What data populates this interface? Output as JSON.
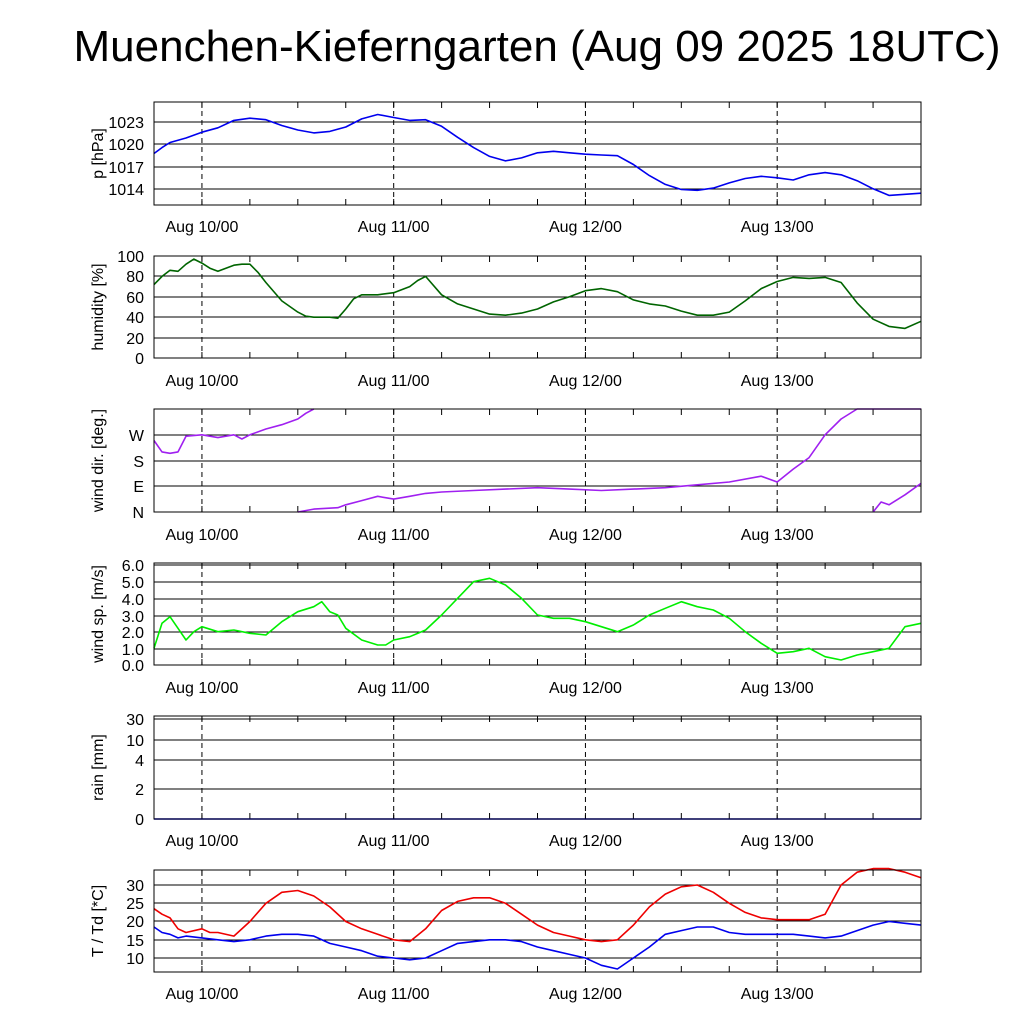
{
  "title": "Muenchen-Kieferngarten (Aug 09 2025 18UTC)",
  "x_ticks": [
    "Aug 10/00",
    "Aug 11/00",
    "Aug 12/00",
    "Aug 13/00"
  ],
  "colors": {
    "pressure": "#0000ee",
    "humidity": "#006400",
    "wind_dir": "#a020f0",
    "wind_sp": "#00ee00",
    "temperature": "#ee0000",
    "dewpoint": "#0000ee",
    "grid": "#000000"
  },
  "chart_data": [
    {
      "type": "line",
      "ylabel": "p [hPa]",
      "yticks": [
        "1023",
        "1020",
        "1017",
        "1014"
      ],
      "ylim": [
        1012,
        1026
      ],
      "series": [
        {
          "color_key": "pressure",
          "x": [
            -6,
            -5,
            -4,
            -2,
            0,
            2,
            4,
            6,
            8,
            10,
            12,
            14,
            16,
            18,
            20,
            22,
            24,
            26,
            28,
            30,
            32,
            34,
            36,
            38,
            40,
            42,
            44,
            46,
            48,
            50,
            52,
            54,
            56,
            58,
            60,
            62,
            64,
            66,
            68,
            70,
            72,
            74,
            76,
            78,
            80,
            82,
            84,
            86,
            90
          ],
          "y": [
            1019.0,
            1019.8,
            1020.5,
            1021.1,
            1021.9,
            1022.5,
            1023.5,
            1023.8,
            1023.6,
            1022.8,
            1022.2,
            1021.8,
            1022.0,
            1022.6,
            1023.7,
            1024.3,
            1023.9,
            1023.5,
            1023.6,
            1022.7,
            1021.2,
            1019.8,
            1018.6,
            1018.0,
            1018.4,
            1019.1,
            1019.3,
            1019.1,
            1018.9,
            1018.8,
            1018.7,
            1017.5,
            1016.0,
            1014.8,
            1014.1,
            1014.0,
            1014.3,
            1015.0,
            1015.6,
            1015.9,
            1015.7,
            1015.4,
            1016.1,
            1016.4,
            1016.1,
            1015.3,
            1014.2,
            1013.3,
            1013.6
          ]
        }
      ]
    },
    {
      "type": "line",
      "ylabel": "humidity [%]",
      "yticks": [
        "100",
        "80",
        "60",
        "40",
        "20",
        "0"
      ],
      "ylim": [
        0,
        100
      ],
      "series": [
        {
          "color_key": "humidity",
          "x": [
            -6,
            -5,
            -4,
            -3,
            -2,
            -1,
            0,
            1,
            2,
            3,
            4,
            5,
            6,
            7,
            8,
            10,
            12,
            13,
            14,
            15,
            16,
            17,
            18,
            19,
            20,
            22,
            24,
            26,
            27,
            28,
            30,
            32,
            34,
            36,
            38,
            40,
            42,
            44,
            46,
            48,
            50,
            52,
            54,
            56,
            58,
            60,
            62,
            64,
            66,
            68,
            70,
            72,
            74,
            76,
            78,
            80,
            82,
            84,
            86,
            88,
            90
          ],
          "y": [
            72,
            80,
            86,
            85,
            92,
            97,
            93,
            88,
            85,
            88,
            91,
            92,
            92,
            84,
            74,
            56,
            45,
            41,
            40,
            40,
            40,
            39,
            48,
            58,
            62,
            62,
            64,
            70,
            76,
            80,
            62,
            53,
            48,
            43,
            42,
            44,
            48,
            55,
            60,
            66,
            68,
            65,
            57,
            53,
            51,
            46,
            42,
            42,
            45,
            56,
            68,
            75,
            79,
            78,
            79,
            74,
            54,
            38,
            31,
            29,
            36
          ]
        }
      ]
    },
    {
      "type": "line",
      "ylabel": "wind dir. [deg.]",
      "yticks": [
        "W",
        "S",
        "E",
        "N"
      ],
      "ylim": [
        0,
        360
      ],
      "series": [
        {
          "color_key": "wind_dir",
          "x": [
            -6,
            -5,
            -4,
            -3,
            -2,
            0,
            2,
            4,
            5,
            6,
            8,
            10,
            12,
            13,
            14
          ],
          "y": [
            250,
            210,
            205,
            210,
            265,
            270,
            260,
            270,
            255,
            270,
            290,
            305,
            325,
            345,
            360
          ]
        },
        {
          "color_key": "wind_dir",
          "x": [
            12,
            14,
            17,
            18,
            20,
            22,
            24,
            26,
            28,
            30,
            34,
            38,
            42,
            46,
            50,
            54,
            58,
            62,
            66,
            70,
            72,
            74,
            76,
            78,
            80,
            82,
            84,
            86,
            88,
            90
          ],
          "y": [
            0,
            10,
            15,
            25,
            40,
            55,
            45,
            55,
            65,
            70,
            75,
            80,
            85,
            80,
            75,
            80,
            85,
            95,
            105,
            125,
            105,
            150,
            190,
            270,
            325,
            360,
            360,
            360,
            360,
            360
          ]
        },
        {
          "color_key": "wind_dir",
          "x": [
            84,
            85,
            86,
            88,
            90
          ],
          "y": [
            0,
            35,
            25,
            60,
            100
          ]
        }
      ]
    },
    {
      "type": "line",
      "ylabel": "wind sp. [m/s]",
      "yticks": [
        "6.0",
        "5.0",
        "4.0",
        "3.0",
        "2.0",
        "1.0",
        "0.0"
      ],
      "ylim": [
        0,
        6
      ],
      "series": [
        {
          "color_key": "wind_sp",
          "x": [
            -6,
            -5,
            -4,
            -3,
            -2,
            -1,
            0,
            2,
            4,
            6,
            8,
            10,
            12,
            14,
            15,
            16,
            17,
            18,
            20,
            22,
            23,
            24,
            26,
            28,
            30,
            32,
            34,
            36,
            38,
            40,
            42,
            44,
            46,
            48,
            50,
            52,
            54,
            56,
            58,
            60,
            62,
            64,
            66,
            68,
            70,
            72,
            74,
            76,
            78,
            80,
            82,
            84,
            86,
            88,
            90
          ],
          "y": [
            1.0,
            2.5,
            2.9,
            2.2,
            1.5,
            2.0,
            2.3,
            2.0,
            2.1,
            1.9,
            1.8,
            2.6,
            3.2,
            3.5,
            3.8,
            3.2,
            3.0,
            2.2,
            1.5,
            1.2,
            1.2,
            1.5,
            1.7,
            2.1,
            3.0,
            4.0,
            5.0,
            5.2,
            4.8,
            4.0,
            3.0,
            2.8,
            2.8,
            2.6,
            2.3,
            2.0,
            2.4,
            3.0,
            3.4,
            3.8,
            3.5,
            3.3,
            2.8,
            2.0,
            1.3,
            0.7,
            0.8,
            1.0,
            0.5,
            0.3,
            0.6,
            0.8,
            1.0,
            2.3,
            2.5
          ]
        }
      ]
    },
    {
      "type": "line",
      "ylabel": "rain [mm]",
      "yticks": [
        "30",
        "10",
        "4",
        "2",
        "0"
      ],
      "ylim": [
        0,
        30
      ],
      "series": [
        {
          "color_key": "dewpoint",
          "x": [
            -6,
            90
          ],
          "y": [
            0,
            0
          ]
        }
      ]
    },
    {
      "type": "line",
      "ylabel": "T / Td [*C]",
      "yticks": [
        "30",
        "25",
        "20",
        "15",
        "10"
      ],
      "ylim": [
        5,
        35
      ],
      "series": [
        {
          "color_key": "temperature",
          "x": [
            -6,
            -5,
            -4,
            -3,
            -2,
            0,
            1,
            2,
            4,
            6,
            8,
            10,
            12,
            14,
            16,
            18,
            20,
            22,
            24,
            26,
            28,
            30,
            32,
            34,
            36,
            38,
            40,
            42,
            44,
            46,
            48,
            50,
            52,
            54,
            56,
            58,
            60,
            62,
            64,
            66,
            68,
            70,
            72,
            74,
            76,
            78,
            80,
            82,
            84,
            86,
            88,
            90
          ],
          "y": [
            23.5,
            22,
            21,
            18,
            17,
            18,
            17,
            17,
            16,
            20,
            25,
            28,
            28.5,
            27,
            24,
            20,
            18,
            16.5,
            15,
            14.5,
            18,
            23,
            25.5,
            26.5,
            26.5,
            25,
            22,
            19,
            17,
            16,
            15,
            14.5,
            15,
            19,
            24,
            27.5,
            29.5,
            30,
            28,
            25,
            22.5,
            21,
            20.5,
            20.5,
            20.5,
            22,
            30,
            33.5,
            34.5,
            34.5,
            33.5,
            32
          ]
        },
        {
          "color_key": "dewpoint",
          "x": [
            -6,
            -5,
            -4,
            -3,
            -2,
            0,
            2,
            4,
            6,
            8,
            10,
            12,
            14,
            16,
            18,
            20,
            22,
            24,
            26,
            28,
            30,
            32,
            34,
            36,
            38,
            40,
            42,
            44,
            46,
            48,
            50,
            52,
            54,
            56,
            58,
            60,
            62,
            64,
            66,
            68,
            70,
            72,
            74,
            76,
            78,
            80,
            82,
            84,
            86,
            88,
            90
          ],
          "y": [
            18.5,
            17,
            16.5,
            15.5,
            16,
            15.5,
            15,
            14.5,
            15,
            16,
            16.5,
            16.5,
            16,
            14,
            13,
            12,
            10.5,
            10,
            9.5,
            10,
            12,
            14,
            14.5,
            15,
            15,
            14.5,
            13,
            12,
            11,
            10,
            8,
            7,
            10,
            13,
            16.5,
            17.5,
            18.5,
            18.5,
            17,
            16.5,
            16.5,
            16.5,
            16.5,
            16,
            15.5,
            16,
            17.5,
            19,
            20,
            19.5,
            19
          ]
        }
      ]
    }
  ]
}
